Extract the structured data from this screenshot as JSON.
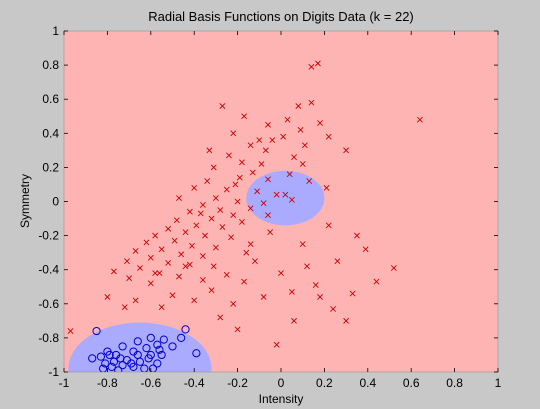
{
  "chart_data": {
    "type": "scatter",
    "title": "Radial Basis Functions on Digits Data (k = 22)",
    "xlabel": "Intensity",
    "ylabel": "Symmetry",
    "xlim": [
      -1,
      1
    ],
    "ylim": [
      -1,
      1
    ],
    "x_ticks": [
      "-1",
      "-0.8",
      "-0.6",
      "-0.4",
      "-0.2",
      "0",
      "0.2",
      "0.4",
      "0.6",
      "0.8",
      "1"
    ],
    "y_ticks": [
      "-1",
      "-0.8",
      "-0.6",
      "-0.4",
      "-0.2",
      "0",
      "0.2",
      "0.4",
      "0.6",
      "0.8",
      "1"
    ],
    "grid": false,
    "colors": {
      "background": "#c8c8c8",
      "negative_region": "#ffb4b4",
      "positive_region": "#aaaaff",
      "cross_marker": "#cc0000",
      "circle_marker": "#0000cc"
    },
    "regions": [
      {
        "class": "positive",
        "shape": "ellipse",
        "cx": 0.02,
        "cy": 0.02,
        "rx": 0.18,
        "ry": 0.16
      },
      {
        "class": "positive",
        "shape": "ellipse",
        "cx": -0.65,
        "cy": -0.98,
        "rx": 0.33,
        "ry": 0.27
      }
    ],
    "series": [
      {
        "marker": "x",
        "points": [
          [
            0.17,
            0.81
          ],
          [
            0.14,
            0.79
          ],
          [
            -0.27,
            0.56
          ],
          [
            0.08,
            0.56
          ],
          [
            0.14,
            0.58
          ],
          [
            0.64,
            0.48
          ],
          [
            -0.17,
            0.5
          ],
          [
            0.18,
            0.46
          ],
          [
            -0.06,
            0.45
          ],
          [
            0.09,
            0.42
          ],
          [
            0.01,
            0.38
          ],
          [
            0.22,
            0.38
          ],
          [
            -0.1,
            0.36
          ],
          [
            -0.22,
            0.4
          ],
          [
            -0.14,
            0.33
          ],
          [
            0.11,
            0.33
          ],
          [
            0.3,
            0.3
          ],
          [
            -0.07,
            0.3
          ],
          [
            -0.24,
            0.27
          ],
          [
            0.06,
            0.26
          ],
          [
            -0.18,
            0.23
          ],
          [
            0.1,
            0.22
          ],
          [
            -0.31,
            0.2
          ],
          [
            -0.13,
            0.17
          ],
          [
            0.04,
            0.16
          ],
          [
            -0.19,
            0.14
          ],
          [
            -0.06,
            0.13
          ],
          [
            0.13,
            0.12
          ],
          [
            -0.34,
            0.12
          ],
          [
            -0.4,
            0.08
          ],
          [
            -0.25,
            0.07
          ],
          [
            -0.11,
            0.06
          ],
          [
            0.21,
            0.08
          ],
          [
            -0.02,
            0.04
          ],
          [
            0.02,
            0.04
          ],
          [
            -0.3,
            0.02
          ],
          [
            -0.47,
            0.02
          ],
          [
            -0.2,
            0.0
          ],
          [
            -0.08,
            -0.01
          ],
          [
            0.05,
            0.01
          ],
          [
            -0.36,
            -0.02
          ],
          [
            -0.14,
            -0.04
          ],
          [
            -0.28,
            -0.05
          ],
          [
            -0.42,
            -0.06
          ],
          [
            -0.22,
            -0.08
          ],
          [
            -0.06,
            -0.08
          ],
          [
            -0.32,
            -0.1
          ],
          [
            -0.48,
            -0.11
          ],
          [
            -0.18,
            -0.12
          ],
          [
            -0.39,
            -0.14
          ],
          [
            -0.27,
            -0.15
          ],
          [
            -0.52,
            -0.16
          ],
          [
            -0.44,
            -0.18
          ],
          [
            -0.35,
            -0.2
          ],
          [
            -0.58,
            -0.2
          ],
          [
            -0.23,
            -0.21
          ],
          [
            -0.49,
            -0.23
          ],
          [
            -0.62,
            -0.24
          ],
          [
            -0.41,
            -0.26
          ],
          [
            -0.3,
            -0.27
          ],
          [
            -0.55,
            -0.28
          ],
          [
            -0.67,
            -0.29
          ],
          [
            -0.46,
            -0.31
          ],
          [
            -0.36,
            -0.32
          ],
          [
            -0.6,
            -0.33
          ],
          [
            -0.71,
            -0.35
          ],
          [
            -0.52,
            -0.36
          ],
          [
            -0.42,
            -0.37
          ],
          [
            -0.31,
            -0.38
          ],
          [
            -0.65,
            -0.39
          ],
          [
            -0.77,
            -0.41
          ],
          [
            -0.56,
            -0.42
          ],
          [
            -0.47,
            -0.44
          ],
          [
            -0.7,
            -0.45
          ],
          [
            -0.36,
            -0.46
          ],
          [
            -0.6,
            -0.48
          ],
          [
            -0.8,
            -0.56
          ],
          [
            -0.67,
            -0.58
          ],
          [
            -0.5,
            -0.55
          ],
          [
            -0.32,
            -0.52
          ],
          [
            -0.17,
            -0.47
          ],
          [
            0.0,
            -0.42
          ],
          [
            0.12,
            -0.38
          ],
          [
            0.26,
            -0.35
          ],
          [
            0.39,
            -0.28
          ],
          [
            0.52,
            -0.39
          ],
          [
            0.44,
            -0.47
          ],
          [
            0.33,
            -0.54
          ],
          [
            0.16,
            -0.49
          ],
          [
            0.05,
            -0.53
          ],
          [
            -0.08,
            -0.56
          ],
          [
            -0.22,
            -0.6
          ],
          [
            -0.4,
            -0.58
          ],
          [
            -0.55,
            -0.62
          ],
          [
            -0.72,
            -0.62
          ],
          [
            -0.2,
            -0.75
          ],
          [
            0.06,
            -0.7
          ],
          [
            0.24,
            -0.63
          ],
          [
            -0.02,
            -0.84
          ],
          [
            -0.97,
            -0.76
          ],
          [
            -0.14,
            -0.25
          ],
          [
            -0.05,
            -0.18
          ],
          [
            0.22,
            -0.14
          ],
          [
            0.35,
            -0.2
          ],
          [
            0.1,
            -0.25
          ],
          [
            -0.12,
            -0.35
          ],
          [
            0.18,
            -0.56
          ],
          [
            0.3,
            -0.7
          ],
          [
            -0.09,
            0.22
          ],
          [
            -0.33,
            0.3
          ],
          [
            -0.04,
            0.36
          ],
          [
            0.03,
            0.48
          ],
          [
            -0.21,
            0.1
          ],
          [
            -0.16,
            -0.3
          ],
          [
            -0.25,
            -0.43
          ],
          [
            -0.37,
            -0.07
          ],
          [
            -0.44,
            -0.38
          ],
          [
            -0.58,
            -0.42
          ],
          [
            -0.28,
            -0.68
          ]
        ]
      },
      {
        "marker": "o",
        "points": [
          [
            -0.85,
            -0.76
          ],
          [
            -0.44,
            -0.75
          ],
          [
            -0.46,
            -0.8
          ],
          [
            -0.6,
            -0.8
          ],
          [
            -0.54,
            -0.81
          ],
          [
            -0.66,
            -0.82
          ],
          [
            -0.57,
            -0.84
          ],
          [
            -0.73,
            -0.85
          ],
          [
            -0.5,
            -0.85
          ],
          [
            -0.62,
            -0.86
          ],
          [
            -0.68,
            -0.88
          ],
          [
            -0.56,
            -0.87
          ],
          [
            -0.39,
            -0.89
          ],
          [
            -0.79,
            -0.9
          ],
          [
            -0.83,
            -0.91
          ],
          [
            -0.74,
            -0.92
          ],
          [
            -0.61,
            -0.92
          ],
          [
            -0.87,
            -0.92
          ],
          [
            -0.71,
            -0.93
          ],
          [
            -0.65,
            -0.94
          ],
          [
            -0.77,
            -0.94
          ],
          [
            -0.81,
            -0.95
          ],
          [
            -0.57,
            -0.95
          ],
          [
            -0.73,
            -0.96
          ],
          [
            -0.68,
            -0.97
          ],
          [
            -0.78,
            -0.97
          ],
          [
            -0.63,
            -0.98
          ],
          [
            -0.82,
            -0.98
          ],
          [
            -0.75,
            -0.99
          ],
          [
            -0.59,
            -0.98
          ],
          [
            -0.8,
            -0.88
          ],
          [
            -0.76,
            -0.9
          ],
          [
            -0.66,
            -0.9
          ],
          [
            -0.6,
            -0.9
          ],
          [
            -0.69,
            -0.95
          ],
          [
            -0.55,
            -0.9
          ]
        ]
      }
    ]
  }
}
